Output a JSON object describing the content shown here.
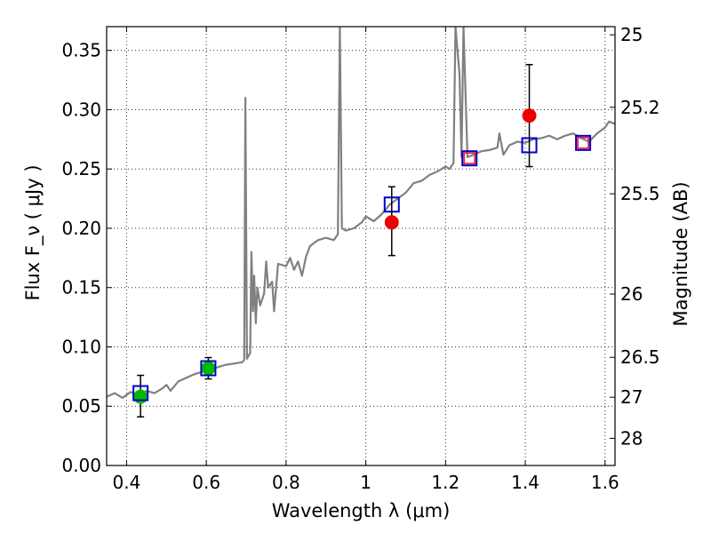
{
  "chart_data": {
    "type": "scatter",
    "xlabel": "Wavelength λ (μm)",
    "ylabel": "Flux F_ν ( μJy )",
    "ylabel2": "Magnitude (AB)",
    "xlim": [
      0.35,
      1.625
    ],
    "ylim": [
      0,
      0.37
    ],
    "grid": true,
    "x_ticks": [
      {
        "v": 0.4,
        "label": "0.4"
      },
      {
        "v": 0.6,
        "label": "0.6"
      },
      {
        "v": 0.8,
        "label": "0.8"
      },
      {
        "v": 1.0,
        "label": "1"
      },
      {
        "v": 1.2,
        "label": "1.2"
      },
      {
        "v": 1.4,
        "label": "1.4"
      },
      {
        "v": 1.6,
        "label": "1.6"
      }
    ],
    "y_ticks": [
      {
        "v": 0.0,
        "label": "0.00"
      },
      {
        "v": 0.05,
        "label": "0.05"
      },
      {
        "v": 0.1,
        "label": "0.10"
      },
      {
        "v": 0.15,
        "label": "0.15"
      },
      {
        "v": 0.2,
        "label": "0.20"
      },
      {
        "v": 0.25,
        "label": "0.25"
      },
      {
        "v": 0.3,
        "label": "0.30"
      },
      {
        "v": 0.35,
        "label": "0.35"
      }
    ],
    "mag_ticks": [
      {
        "mag": 25,
        "label": "25"
      },
      {
        "mag": 25.2,
        "label": "25.2"
      },
      {
        "mag": 25.5,
        "label": "25.5"
      },
      {
        "mag": 26,
        "label": "26"
      },
      {
        "mag": 26.5,
        "label": "26.5"
      },
      {
        "mag": 27,
        "label": "27"
      },
      {
        "mag": 28,
        "label": "28"
      }
    ],
    "colors": {
      "model": "#808080",
      "green": "#00bb00",
      "red": "#ee0000",
      "blue": "#0000cc",
      "pink": "#ee2244"
    },
    "series": [
      {
        "kind": "line",
        "points": [
          [
            0.35,
            0.058
          ],
          [
            0.37,
            0.061
          ],
          [
            0.39,
            0.057
          ],
          [
            0.41,
            0.062
          ],
          [
            0.43,
            0.059
          ],
          [
            0.45,
            0.063
          ],
          [
            0.47,
            0.061
          ],
          [
            0.49,
            0.065
          ],
          [
            0.5,
            0.068
          ],
          [
            0.51,
            0.063
          ],
          [
            0.53,
            0.071
          ],
          [
            0.55,
            0.074
          ],
          [
            0.57,
            0.077
          ],
          [
            0.59,
            0.079
          ],
          [
            0.61,
            0.081
          ],
          [
            0.63,
            0.083
          ],
          [
            0.65,
            0.085
          ],
          [
            0.67,
            0.086
          ],
          [
            0.69,
            0.087
          ],
          [
            0.695,
            0.089
          ],
          [
            0.698,
            0.31
          ],
          [
            0.702,
            0.09
          ],
          [
            0.71,
            0.095
          ],
          [
            0.713,
            0.18
          ],
          [
            0.717,
            0.13
          ],
          [
            0.72,
            0.16
          ],
          [
            0.724,
            0.12
          ],
          [
            0.728,
            0.15
          ],
          [
            0.735,
            0.135
          ],
          [
            0.745,
            0.145
          ],
          [
            0.75,
            0.172
          ],
          [
            0.755,
            0.15
          ],
          [
            0.765,
            0.155
          ],
          [
            0.77,
            0.13
          ],
          [
            0.78,
            0.17
          ],
          [
            0.8,
            0.168
          ],
          [
            0.81,
            0.175
          ],
          [
            0.82,
            0.165
          ],
          [
            0.83,
            0.172
          ],
          [
            0.84,
            0.16
          ],
          [
            0.85,
            0.176
          ],
          [
            0.86,
            0.185
          ],
          [
            0.88,
            0.19
          ],
          [
            0.9,
            0.192
          ],
          [
            0.92,
            0.19
          ],
          [
            0.93,
            0.195
          ],
          [
            0.935,
            0.37
          ],
          [
            0.94,
            0.2
          ],
          [
            0.95,
            0.198
          ],
          [
            0.97,
            0.2
          ],
          [
            0.99,
            0.205
          ],
          [
            1.0,
            0.21
          ],
          [
            1.02,
            0.206
          ],
          [
            1.04,
            0.212
          ],
          [
            1.06,
            0.22
          ],
          [
            1.08,
            0.225
          ],
          [
            1.1,
            0.23
          ],
          [
            1.12,
            0.238
          ],
          [
            1.14,
            0.24
          ],
          [
            1.16,
            0.245
          ],
          [
            1.18,
            0.248
          ],
          [
            1.2,
            0.252
          ],
          [
            1.21,
            0.25
          ],
          [
            1.22,
            0.255
          ],
          [
            1.225,
            0.37
          ],
          [
            1.235,
            0.33
          ],
          [
            1.24,
            0.26
          ],
          [
            1.245,
            0.37
          ],
          [
            1.255,
            0.26
          ],
          [
            1.27,
            0.262
          ],
          [
            1.29,
            0.265
          ],
          [
            1.31,
            0.266
          ],
          [
            1.33,
            0.268
          ],
          [
            1.335,
            0.28
          ],
          [
            1.345,
            0.262
          ],
          [
            1.36,
            0.27
          ],
          [
            1.38,
            0.273
          ],
          [
            1.4,
            0.272
          ],
          [
            1.42,
            0.275
          ],
          [
            1.44,
            0.276
          ],
          [
            1.46,
            0.278
          ],
          [
            1.48,
            0.275
          ],
          [
            1.5,
            0.278
          ],
          [
            1.52,
            0.28
          ],
          [
            1.54,
            0.276
          ],
          [
            1.56,
            0.273
          ],
          [
            1.58,
            0.28
          ],
          [
            1.6,
            0.285
          ],
          [
            1.61,
            0.29
          ],
          [
            1.625,
            0.288
          ]
        ]
      },
      {
        "kind": "errorbar",
        "x": 0.435,
        "y": 0.058,
        "lo": 0.041,
        "hi": 0.076
      },
      {
        "kind": "errorbar",
        "x": 0.605,
        "y": 0.082,
        "lo": 0.073,
        "hi": 0.091
      },
      {
        "kind": "errorbar",
        "x": 1.065,
        "y": 0.205,
        "lo": 0.177,
        "hi": 0.235
      },
      {
        "kind": "errorbar",
        "x": 1.41,
        "y": 0.295,
        "lo": 0.252,
        "hi": 0.338
      },
      {
        "kind": "circle",
        "color": "green",
        "x": 0.435,
        "y": 0.058
      },
      {
        "kind": "circle",
        "color": "green",
        "x": 0.605,
        "y": 0.082
      },
      {
        "kind": "circle",
        "color": "red",
        "x": 1.065,
        "y": 0.205
      },
      {
        "kind": "circle",
        "color": "red",
        "x": 1.41,
        "y": 0.295
      },
      {
        "kind": "square",
        "color": "blue",
        "x": 0.435,
        "y": 0.061
      },
      {
        "kind": "square",
        "color": "blue",
        "x": 0.605,
        "y": 0.082
      },
      {
        "kind": "square",
        "color": "blue",
        "x": 1.065,
        "y": 0.22
      },
      {
        "kind": "square",
        "color": "blue",
        "x": 1.26,
        "y": 0.259
      },
      {
        "kind": "square",
        "color": "blue",
        "x": 1.41,
        "y": 0.27
      },
      {
        "kind": "square",
        "color": "blue",
        "x": 1.545,
        "y": 0.272
      },
      {
        "kind": "square",
        "color": "pink",
        "x": 1.26,
        "y": 0.259
      },
      {
        "kind": "square",
        "color": "pink",
        "x": 1.545,
        "y": 0.272
      }
    ]
  }
}
